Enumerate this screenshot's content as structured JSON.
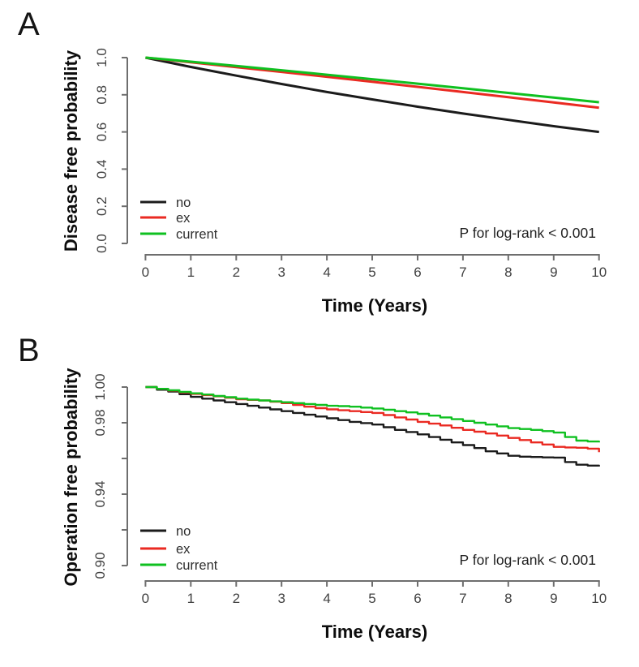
{
  "figure_background": "#ffffff",
  "axis_line_color": "#6e6e6e",
  "tick_text_color": "#414141",
  "chart_data": [
    {
      "panel_label": "A",
      "type": "line",
      "title": "",
      "xlabel": "Time (Years)",
      "ylabel": "Disease free probability",
      "annotation": "P for log-rank < 0.001",
      "xlim": [
        0,
        10
      ],
      "ylim": [
        0.0,
        1.0
      ],
      "grid": false,
      "legend_position": "bottom-left-inside",
      "x_ticks": [
        0,
        1,
        2,
        3,
        4,
        5,
        6,
        7,
        8,
        9,
        10
      ],
      "y_ticks": [
        {
          "v": 0.0,
          "label": "0.0"
        },
        {
          "v": 0.2,
          "label": "0.2"
        },
        {
          "v": 0.4,
          "label": "0.4"
        },
        {
          "v": 0.6,
          "label": "0.6"
        },
        {
          "v": 0.8,
          "label": "0.8"
        },
        {
          "v": 1.0,
          "label": "1.0"
        }
      ],
      "x": [
        0,
        1,
        2,
        3,
        4,
        5,
        6,
        7,
        8,
        9,
        10
      ],
      "series": [
        {
          "name": "no",
          "color": "#1b1b1b",
          "y": [
            1.0,
            0.95,
            0.903,
            0.858,
            0.815,
            0.775,
            0.736,
            0.699,
            0.665,
            0.631,
            0.6
          ]
        },
        {
          "name": "ex",
          "color": "#ea2a22",
          "y": [
            1.0,
            0.975,
            0.949,
            0.923,
            0.897,
            0.87,
            0.843,
            0.815,
            0.787,
            0.759,
            0.73
          ]
        },
        {
          "name": "current",
          "color": "#0fc020",
          "y": [
            1.0,
            0.978,
            0.955,
            0.932,
            0.908,
            0.884,
            0.86,
            0.835,
            0.81,
            0.785,
            0.76
          ]
        }
      ]
    },
    {
      "panel_label": "B",
      "type": "step",
      "title": "",
      "xlabel": "Time (Years)",
      "ylabel": "Operation free probability",
      "annotation": "P for log-rank < 0.001",
      "xlim": [
        0,
        10
      ],
      "ylim": [
        0.9,
        1.0
      ],
      "grid": false,
      "legend_position": "bottom-left-inside",
      "x_ticks": [
        0,
        1,
        2,
        3,
        4,
        5,
        6,
        7,
        8,
        9,
        10
      ],
      "y_ticks": [
        {
          "v": 1.0,
          "label": "1.00"
        },
        {
          "v": 0.98,
          "label": "0.98"
        },
        {
          "v": 0.96,
          "label": ""
        },
        {
          "v": 0.94,
          "label": "0.94"
        },
        {
          "v": 0.92,
          "label": ""
        },
        {
          "v": 0.9,
          "label": "0.90"
        }
      ],
      "x": [
        0,
        0.25,
        0.5,
        0.75,
        1,
        1.25,
        1.5,
        1.75,
        2,
        2.25,
        2.5,
        2.75,
        3,
        3.25,
        3.5,
        3.75,
        4,
        4.25,
        4.5,
        4.75,
        5,
        5.25,
        5.5,
        5.75,
        6,
        6.25,
        6.5,
        6.75,
        7,
        7.25,
        7.5,
        7.75,
        8,
        8.25,
        8.5,
        8.75,
        9,
        9.25,
        9.5,
        9.75,
        10
      ],
      "series": [
        {
          "name": "no",
          "color": "#1b1b1b",
          "y": [
            1.0,
            0.9985,
            0.9975,
            0.996,
            0.9945,
            0.9935,
            0.9925,
            0.9915,
            0.9905,
            0.9895,
            0.9885,
            0.9875,
            0.9865,
            0.9855,
            0.9845,
            0.9835,
            0.9825,
            0.9815,
            0.9805,
            0.9798,
            0.979,
            0.9775,
            0.976,
            0.9748,
            0.9735,
            0.972,
            0.9705,
            0.969,
            0.9675,
            0.9658,
            0.964,
            0.9628,
            0.9615,
            0.961,
            0.9608,
            0.9606,
            0.9605,
            0.958,
            0.9565,
            0.956,
            0.9555
          ]
        },
        {
          "name": "ex",
          "color": "#ea2a22",
          "y": [
            1.0,
            0.999,
            0.998,
            0.997,
            0.9962,
            0.9955,
            0.9948,
            0.994,
            0.9932,
            0.9928,
            0.9925,
            0.9918,
            0.991,
            0.99,
            0.989,
            0.9882,
            0.9875,
            0.987,
            0.9865,
            0.986,
            0.9855,
            0.9843,
            0.983,
            0.9818,
            0.9805,
            0.9795,
            0.9785,
            0.9772,
            0.976,
            0.975,
            0.974,
            0.9728,
            0.9715,
            0.9703,
            0.969,
            0.9678,
            0.9665,
            0.9662,
            0.966,
            0.9655,
            0.9635
          ]
        },
        {
          "name": "current",
          "color": "#0fc020",
          "y": [
            1.0,
            0.999,
            0.9982,
            0.9973,
            0.9965,
            0.9958,
            0.995,
            0.9943,
            0.9935,
            0.993,
            0.9925,
            0.992,
            0.9915,
            0.991,
            0.9905,
            0.99,
            0.9895,
            0.9893,
            0.989,
            0.9885,
            0.988,
            0.9873,
            0.9865,
            0.9858,
            0.985,
            0.984,
            0.983,
            0.982,
            0.981,
            0.98,
            0.979,
            0.978,
            0.977,
            0.9765,
            0.976,
            0.9753,
            0.9745,
            0.972,
            0.97,
            0.9695,
            0.969
          ]
        }
      ]
    }
  ]
}
